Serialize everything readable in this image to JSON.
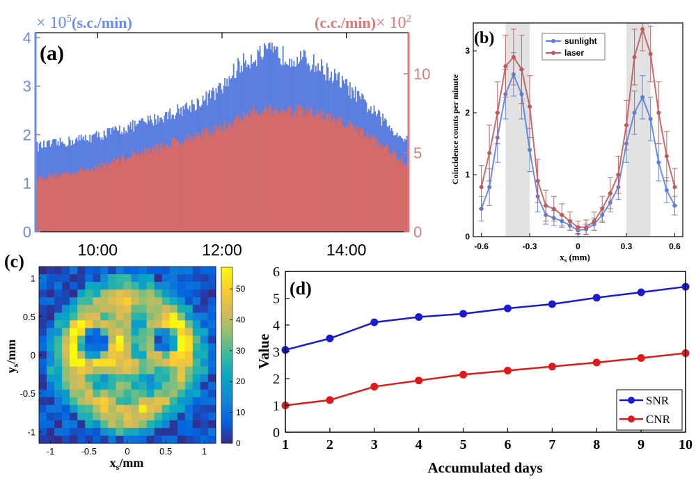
{
  "panel_labels": [
    "(a)",
    "(b)",
    "(c)",
    "(d)"
  ],
  "chart_data": [
    {
      "id": "a",
      "type": "bar",
      "left_unit_text": "(s.c./min)",
      "left_multiplier": "× 10",
      "left_exponent": "5",
      "right_unit_text": "(c.c./min)",
      "right_multiplier": "× 10",
      "right_exponent": "2",
      "x_ticks": [
        "10:00",
        "12:00",
        "14:00"
      ],
      "y_left_ticks": [
        0,
        1,
        2,
        3,
        4
      ],
      "y_right_ticks": [
        0,
        5,
        10
      ],
      "y_left_lim": [
        0,
        4.1
      ],
      "y_right_lim": [
        0,
        12.6
      ],
      "x_hours_lim": [
        9.0,
        15.0
      ],
      "series": [
        {
          "axis": "left",
          "color": "#5b7fe0",
          "x": [
            9.0,
            9.5,
            10.0,
            10.5,
            11.0,
            11.5,
            11.75,
            12.0,
            12.25,
            12.5,
            12.75,
            13.0,
            13.25,
            13.5,
            13.75,
            14.0,
            14.25,
            14.5,
            14.75,
            15.0
          ],
          "values": [
            1.75,
            1.85,
            1.98,
            2.15,
            2.35,
            2.6,
            2.75,
            2.95,
            3.4,
            3.6,
            3.7,
            3.62,
            3.58,
            3.45,
            3.25,
            3.0,
            2.7,
            2.4,
            2.1,
            1.85
          ]
        },
        {
          "axis": "right",
          "color": "#d46a6a",
          "x": [
            9.0,
            9.5,
            10.0,
            10.5,
            11.0,
            11.5,
            12.0,
            12.5,
            12.75,
            13.0,
            13.5,
            14.0,
            14.5,
            14.75,
            15.0
          ],
          "values": [
            3.4,
            3.7,
            4.1,
            4.8,
            5.4,
            6.0,
            6.6,
            7.6,
            7.8,
            7.7,
            7.5,
            6.8,
            5.7,
            5.0,
            4.2
          ]
        }
      ]
    },
    {
      "id": "b",
      "type": "line",
      "xlabel": "x",
      "xlabel_sub": "s",
      "xlabel_unit": "(mm)",
      "ylabel": "Coincidence counts per minute",
      "xlim": [
        -0.65,
        0.65
      ],
      "ylim": [
        0,
        3.45
      ],
      "x_ticks": [
        -0.6,
        -0.3,
        0,
        0.3,
        0.6
      ],
      "y_ticks": [
        0,
        1,
        2,
        3
      ],
      "shaded_regions": [
        [
          -0.45,
          -0.3
        ],
        [
          0.3,
          0.45
        ]
      ],
      "series": [
        {
          "name": "sunlight",
          "color": "#5b7fe0",
          "x": [
            -0.6,
            -0.55,
            -0.5,
            -0.45,
            -0.4,
            -0.35,
            -0.3,
            -0.25,
            -0.2,
            -0.15,
            -0.1,
            -0.05,
            0,
            0.05,
            0.1,
            0.15,
            0.2,
            0.25,
            0.3,
            0.35,
            0.4,
            0.45,
            0.5,
            0.55,
            0.6
          ],
          "y": [
            0.45,
            0.8,
            1.6,
            2.3,
            2.62,
            2.3,
            1.4,
            0.65,
            0.35,
            0.3,
            0.25,
            0.18,
            0.1,
            0.12,
            0.2,
            0.35,
            0.55,
            0.8,
            1.5,
            2.0,
            2.25,
            1.9,
            1.2,
            0.75,
            0.5
          ],
          "err": [
            0.2,
            0.3,
            0.4,
            0.4,
            0.35,
            0.4,
            0.35,
            0.25,
            0.15,
            0.12,
            0.1,
            0.08,
            0.06,
            0.08,
            0.1,
            0.12,
            0.15,
            0.2,
            0.3,
            0.35,
            0.35,
            0.35,
            0.3,
            0.2,
            0.15
          ]
        },
        {
          "name": "laser",
          "color": "#c05a5a",
          "x": [
            -0.6,
            -0.55,
            -0.5,
            -0.45,
            -0.4,
            -0.35,
            -0.3,
            -0.25,
            -0.2,
            -0.15,
            -0.1,
            -0.05,
            0,
            0.05,
            0.1,
            0.15,
            0.2,
            0.25,
            0.3,
            0.35,
            0.4,
            0.45,
            0.5,
            0.55,
            0.6
          ],
          "y": [
            0.8,
            1.35,
            2.0,
            2.75,
            2.9,
            2.7,
            2.1,
            0.9,
            0.5,
            0.45,
            0.35,
            0.25,
            0.15,
            0.15,
            0.25,
            0.45,
            0.7,
            1.0,
            1.8,
            2.9,
            3.35,
            2.95,
            2.0,
            1.3,
            0.8
          ],
          "err": [
            0.35,
            0.45,
            0.5,
            0.5,
            0.45,
            0.55,
            0.5,
            0.35,
            0.25,
            0.2,
            0.18,
            0.15,
            0.1,
            0.12,
            0.15,
            0.2,
            0.25,
            0.3,
            0.4,
            0.45,
            0.35,
            0.45,
            0.5,
            0.4,
            0.3
          ]
        }
      ]
    },
    {
      "id": "c",
      "type": "heatmap",
      "xlabel": "x",
      "xlabel_sub": "s",
      "xlabel_unit": "/mm",
      "ylabel": "y",
      "ylabel_sub": "s",
      "ylabel_unit": "/mm",
      "x_ticks": [
        -1,
        -0.5,
        0,
        0.5,
        1
      ],
      "y_ticks": [
        1,
        0.5,
        0,
        -0.5,
        -1
      ],
      "xlim": [
        -1.15,
        1.15
      ],
      "ylim": [
        -1.15,
        1.15
      ],
      "colorbar_ticks": [
        0,
        10,
        20,
        30,
        40,
        50
      ],
      "colorbar_range": [
        0,
        57
      ],
      "grid_size": 23,
      "color_stops": [
        "#352a87",
        "#0363e1",
        "#1485d4",
        "#06a7c6",
        "#38b99e",
        "#92bf73",
        "#d9ba56",
        "#fcce2e",
        "#f9fb0e"
      ]
    },
    {
      "id": "d",
      "type": "line",
      "xlabel": "Accumulated days",
      "ylabel": "Value",
      "xlim": [
        1,
        10
      ],
      "ylim": [
        0,
        6
      ],
      "x_ticks": [
        1,
        2,
        3,
        4,
        5,
        6,
        7,
        8,
        9,
        10
      ],
      "y_ticks": [
        0,
        1,
        2,
        3,
        4,
        5,
        6
      ],
      "legend_position": "bottom-right",
      "series": [
        {
          "name": "SNR",
          "color": "#1a1ad0",
          "x": [
            1,
            2,
            3,
            4,
            5,
            6,
            7,
            8,
            9,
            10
          ],
          "y": [
            3.07,
            3.5,
            4.1,
            4.3,
            4.42,
            4.62,
            4.78,
            5.02,
            5.22,
            5.43
          ]
        },
        {
          "name": "CNR",
          "color": "#e01a1a",
          "x": [
            1,
            2,
            3,
            4,
            5,
            6,
            7,
            8,
            9,
            10
          ],
          "y": [
            1.0,
            1.2,
            1.7,
            1.93,
            2.15,
            2.3,
            2.45,
            2.6,
            2.77,
            2.95
          ]
        }
      ]
    }
  ]
}
